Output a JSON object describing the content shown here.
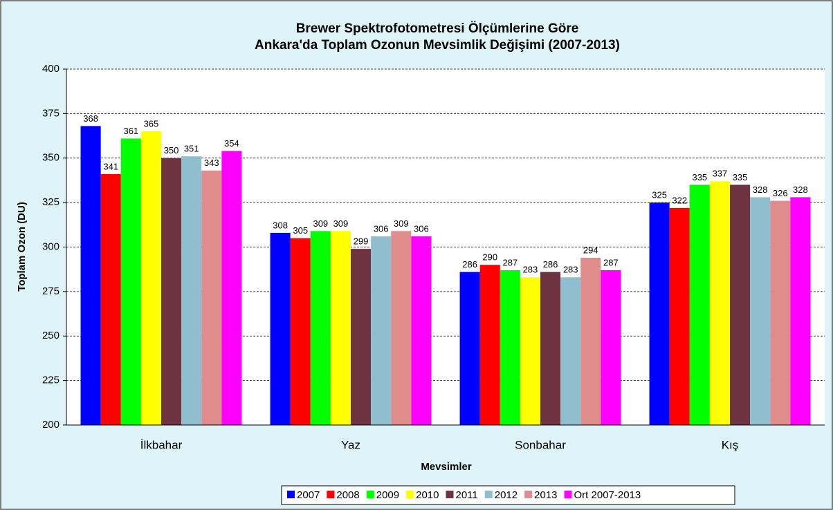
{
  "chart_data": {
    "type": "bar",
    "title": [
      "Brewer Spektrofotometresi Ölçümlerine Göre",
      "Ankara'da Toplam Ozonun Mevsimlik Değişimi (2007-2013)"
    ],
    "x_label": "Mevsimler",
    "y_label": "Toplam Ozon (DU)",
    "categories": [
      "İlkbahar",
      "Yaz",
      "Sonbahar",
      "Kış"
    ],
    "series": [
      {
        "name": "2007",
        "color": "#0000ff",
        "values": [
          368,
          308,
          286,
          325
        ]
      },
      {
        "name": "2008",
        "color": "#ff0000",
        "values": [
          341,
          305,
          290,
          322
        ]
      },
      {
        "name": "2009",
        "color": "#00ff00",
        "values": [
          361,
          309,
          287,
          335
        ]
      },
      {
        "name": "2010",
        "color": "#ffff00",
        "values": [
          365,
          309,
          283,
          337
        ]
      },
      {
        "name": "2011",
        "color": "#6e3341",
        "values": [
          350,
          299,
          286,
          335
        ]
      },
      {
        "name": "2012",
        "color": "#8fbfcf",
        "values": [
          351,
          306,
          283,
          328
        ]
      },
      {
        "name": "2013",
        "color": "#e08c8c",
        "values": [
          343,
          309,
          294,
          326
        ]
      },
      {
        "name": "Ort 2007-2013",
        "color": "#ff00ff",
        "values": [
          354,
          306,
          287,
          328
        ]
      }
    ],
    "ylim": [
      200,
      400
    ],
    "yticks": [
      200,
      225,
      250,
      275,
      300,
      325,
      350,
      375,
      400
    ],
    "grid": true,
    "legend": "bottom"
  }
}
